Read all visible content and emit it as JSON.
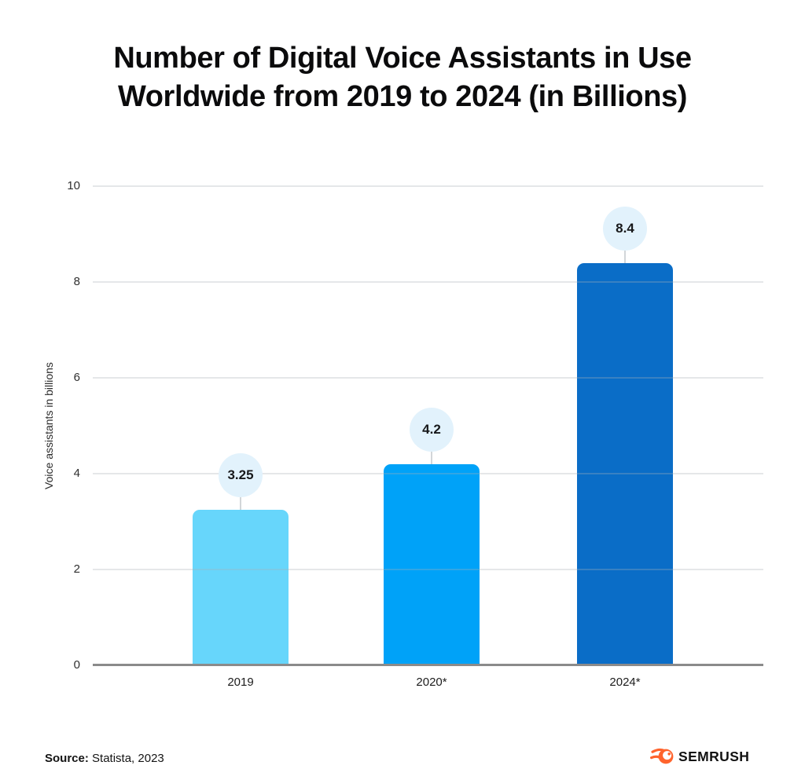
{
  "title": {
    "line1": "Number of Digital Voice Assistants in Use",
    "line2": "Worldwide from 2019 to 2024 (in Billions)"
  },
  "chart_data": {
    "type": "bar",
    "title": "Number of Digital Voice Assistants in Use Worldwide from 2019 to 2024 (in Billions)",
    "categories": [
      "2019",
      "2020*",
      "2024*"
    ],
    "values": [
      3.25,
      4.2,
      8.4
    ],
    "value_labels": [
      "3.25",
      "4.2",
      "8.4"
    ],
    "bar_colors": [
      "#67D6FB",
      "#00A2F8",
      "#0A6DC7"
    ],
    "bubble_fill": "#E2F2FC",
    "xlabel": "",
    "ylabel": "Voice assistants in billions",
    "ylim": [
      0,
      10
    ],
    "yticks": [
      0,
      2,
      4,
      6,
      8,
      10
    ],
    "grid": true,
    "legend": false
  },
  "footer": {
    "source_label": "Source:",
    "source_text": "Statista, 2023",
    "brand": "SEMRUSH",
    "brand_color": "#FF642D"
  }
}
